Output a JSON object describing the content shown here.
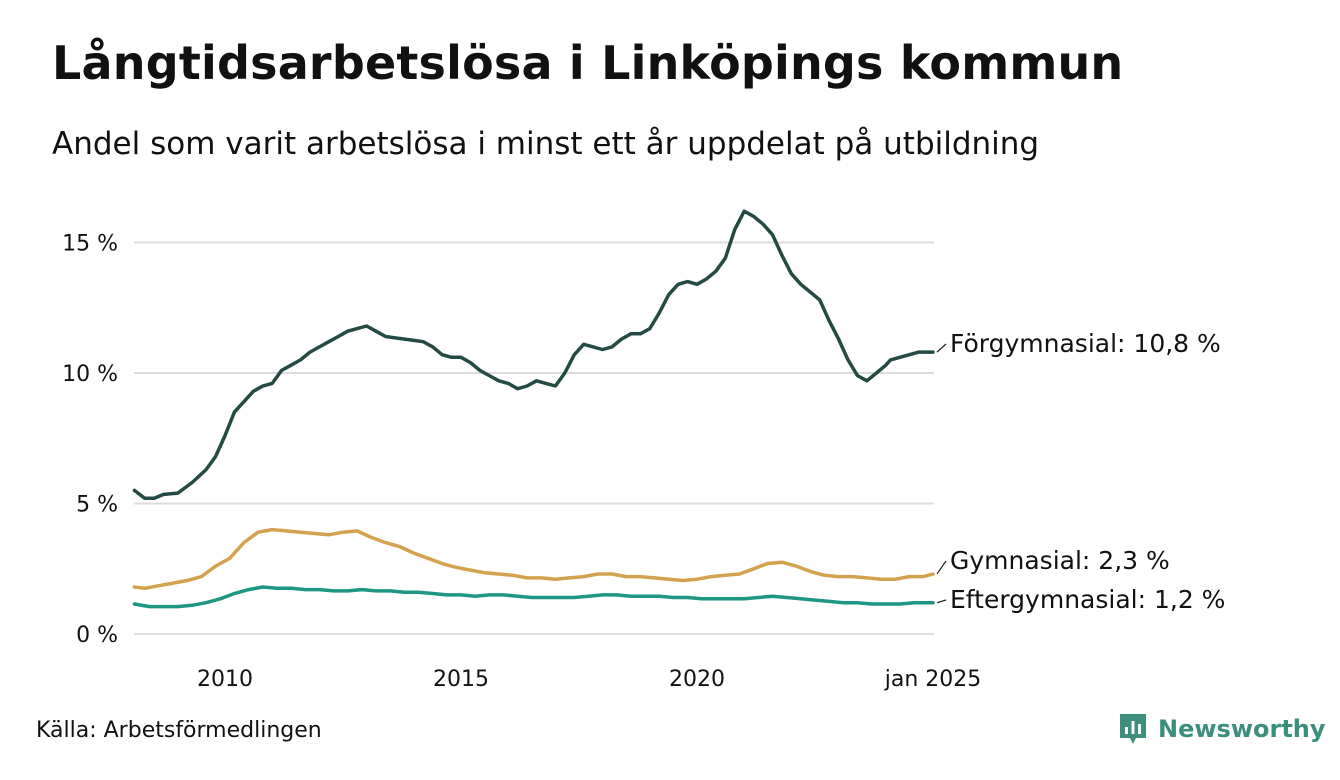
{
  "header": {
    "title": "Långtidsarbetslösa i Linköpings kommun",
    "subtitle": "Andel som varit arbetslösa i minst ett år uppdelat på utbildning"
  },
  "footer": {
    "source": "Källa: Arbetsförmedlingen",
    "brand": "Newsworthy"
  },
  "colors": {
    "forgymnasial": "#234a43",
    "gymnasial": "#d4a24e",
    "eftergymnasial": "#1f9684",
    "grid": "#dcdcdc",
    "brand": "#3b8f7c"
  },
  "chart_data": {
    "type": "line",
    "title": "Långtidsarbetslösa i Linköpings kommun",
    "xlabel": "",
    "ylabel": "",
    "ylim": [
      0,
      16.5
    ],
    "xlim": [
      2008.08,
      2025.0
    ],
    "yticks": [
      {
        "value": 0,
        "label": "0 %"
      },
      {
        "value": 5,
        "label": "5 %"
      },
      {
        "value": 10,
        "label": "10 %"
      },
      {
        "value": 15,
        "label": "15 %"
      }
    ],
    "xticks": [
      {
        "value": 2010,
        "label": "2010"
      },
      {
        "value": 2015,
        "label": "2015"
      },
      {
        "value": 2020,
        "label": "2020"
      },
      {
        "value": 2025,
        "label": "jan 2025"
      }
    ],
    "series": [
      {
        "name": "Förgymnasial",
        "end_label": "Förgymnasial: 10,8 %",
        "x": [
          2008.08,
          2008.3,
          2008.5,
          2008.7,
          2009.0,
          2009.3,
          2009.6,
          2009.8,
          2010.0,
          2010.2,
          2010.4,
          2010.6,
          2010.8,
          2011.0,
          2011.2,
          2011.4,
          2011.6,
          2011.8,
          2012.0,
          2012.2,
          2012.4,
          2012.6,
          2012.8,
          2013.0,
          2013.2,
          2013.4,
          2013.6,
          2013.8,
          2014.0,
          2014.2,
          2014.4,
          2014.6,
          2014.8,
          2015.0,
          2015.2,
          2015.4,
          2015.6,
          2015.8,
          2016.0,
          2016.2,
          2016.4,
          2016.6,
          2016.8,
          2017.0,
          2017.2,
          2017.4,
          2017.6,
          2017.8,
          2018.0,
          2018.2,
          2018.4,
          2018.6,
          2018.8,
          2019.0,
          2019.2,
          2019.4,
          2019.6,
          2019.8,
          2020.0,
          2020.2,
          2020.4,
          2020.6,
          2020.8,
          2021.0,
          2021.2,
          2021.4,
          2021.6,
          2021.8,
          2022.0,
          2022.2,
          2022.4,
          2022.6,
          2022.8,
          2023.0,
          2023.2,
          2023.4,
          2023.6,
          2023.8,
          2024.0,
          2024.1,
          2024.3,
          2024.5,
          2024.7,
          2024.9,
          2025.0
        ],
        "values": [
          5.5,
          5.2,
          5.2,
          5.35,
          5.4,
          5.8,
          6.3,
          6.8,
          7.6,
          8.5,
          8.9,
          9.3,
          9.5,
          9.6,
          10.1,
          10.3,
          10.5,
          10.8,
          11.0,
          11.2,
          11.4,
          11.6,
          11.7,
          11.8,
          11.6,
          11.4,
          11.35,
          11.3,
          11.25,
          11.2,
          11.0,
          10.7,
          10.6,
          10.6,
          10.4,
          10.1,
          9.9,
          9.7,
          9.6,
          9.4,
          9.5,
          9.7,
          9.6,
          9.5,
          10.0,
          10.7,
          11.1,
          11.0,
          10.9,
          11.0,
          11.3,
          11.5,
          11.5,
          11.7,
          12.3,
          13.0,
          13.4,
          13.5,
          13.4,
          13.6,
          13.9,
          14.4,
          15.5,
          16.2,
          16.0,
          15.7,
          15.3,
          14.5,
          13.8,
          13.4,
          13.1,
          12.8,
          12.0,
          11.3,
          10.5,
          9.9,
          9.7,
          10.0,
          10.3,
          10.5,
          10.6,
          10.7,
          10.8,
          10.8,
          10.8
        ]
      },
      {
        "name": "Gymnasial",
        "end_label": "Gymnasial:  2,3 %",
        "x": [
          2008.08,
          2008.3,
          2008.6,
          2008.9,
          2009.2,
          2009.5,
          2009.8,
          2010.1,
          2010.4,
          2010.7,
          2011.0,
          2011.3,
          2011.6,
          2011.9,
          2012.2,
          2012.5,
          2012.8,
          2013.1,
          2013.4,
          2013.7,
          2014.0,
          2014.3,
          2014.6,
          2014.9,
          2015.2,
          2015.5,
          2015.8,
          2016.1,
          2016.4,
          2016.7,
          2017.0,
          2017.3,
          2017.6,
          2017.9,
          2018.2,
          2018.5,
          2018.8,
          2019.1,
          2019.4,
          2019.7,
          2020.0,
          2020.3,
          2020.6,
          2020.9,
          2021.2,
          2021.5,
          2021.8,
          2022.1,
          2022.4,
          2022.7,
          2023.0,
          2023.3,
          2023.6,
          2023.9,
          2024.2,
          2024.5,
          2024.8,
          2025.0
        ],
        "values": [
          1.8,
          1.75,
          1.85,
          1.95,
          2.05,
          2.2,
          2.6,
          2.9,
          3.5,
          3.9,
          4.0,
          3.95,
          3.9,
          3.85,
          3.8,
          3.9,
          3.95,
          3.7,
          3.5,
          3.35,
          3.1,
          2.9,
          2.7,
          2.55,
          2.45,
          2.35,
          2.3,
          2.25,
          2.15,
          2.15,
          2.1,
          2.15,
          2.2,
          2.3,
          2.3,
          2.2,
          2.2,
          2.15,
          2.1,
          2.05,
          2.1,
          2.2,
          2.25,
          2.3,
          2.5,
          2.7,
          2.75,
          2.6,
          2.4,
          2.25,
          2.2,
          2.2,
          2.15,
          2.1,
          2.1,
          2.2,
          2.2,
          2.3
        ]
      },
      {
        "name": "Eftergymnasial",
        "end_label": "Eftergymnasial:  1,2 %",
        "x": [
          2008.08,
          2008.4,
          2008.7,
          2009.0,
          2009.3,
          2009.6,
          2009.9,
          2010.2,
          2010.5,
          2010.8,
          2011.1,
          2011.4,
          2011.7,
          2012.0,
          2012.3,
          2012.6,
          2012.9,
          2013.2,
          2013.5,
          2013.8,
          2014.1,
          2014.4,
          2014.7,
          2015.0,
          2015.3,
          2015.6,
          2015.9,
          2016.2,
          2016.5,
          2016.8,
          2017.1,
          2017.4,
          2017.7,
          2018.0,
          2018.3,
          2018.6,
          2018.9,
          2019.2,
          2019.5,
          2019.8,
          2020.1,
          2020.4,
          2020.7,
          2021.0,
          2021.3,
          2021.6,
          2021.9,
          2022.2,
          2022.5,
          2022.8,
          2023.1,
          2023.4,
          2023.7,
          2024.0,
          2024.3,
          2024.6,
          2024.9,
          2025.0
        ],
        "values": [
          1.15,
          1.05,
          1.05,
          1.05,
          1.1,
          1.2,
          1.35,
          1.55,
          1.7,
          1.8,
          1.75,
          1.75,
          1.7,
          1.7,
          1.65,
          1.65,
          1.7,
          1.65,
          1.65,
          1.6,
          1.6,
          1.55,
          1.5,
          1.5,
          1.45,
          1.5,
          1.5,
          1.45,
          1.4,
          1.4,
          1.4,
          1.4,
          1.45,
          1.5,
          1.5,
          1.45,
          1.45,
          1.45,
          1.4,
          1.4,
          1.35,
          1.35,
          1.35,
          1.35,
          1.4,
          1.45,
          1.4,
          1.35,
          1.3,
          1.25,
          1.2,
          1.2,
          1.15,
          1.15,
          1.15,
          1.2,
          1.2,
          1.2
        ]
      }
    ]
  }
}
